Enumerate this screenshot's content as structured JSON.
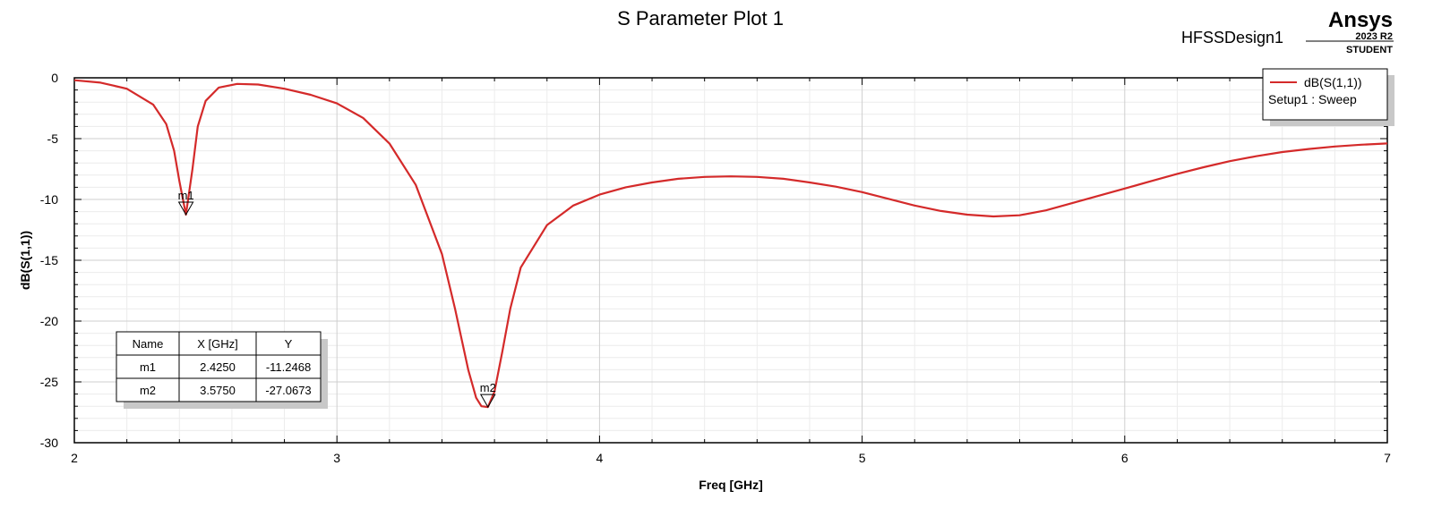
{
  "header": {
    "title": "S Parameter Plot 1",
    "design_name": "HFSSDesign1",
    "brand": "Ansys",
    "brand_version": "2023 R2",
    "brand_edition": "STUDENT"
  },
  "colors": {
    "trace": "#d42a2a",
    "grid_major": "#cfcfcf",
    "grid_minor": "#ececec",
    "shadow": "#c8c8c8"
  },
  "chart_data": {
    "type": "line",
    "title": "S Parameter Plot 1",
    "xlabel": "Freq [GHz]",
    "ylabel": "dB(S(1,1))",
    "xlim": [
      2,
      7
    ],
    "ylim": [
      -30,
      0
    ],
    "x_ticks": [
      "2",
      "3",
      "4",
      "5",
      "6",
      "7"
    ],
    "y_ticks": [
      "0",
      "-5",
      "-10",
      "-15",
      "-20",
      "-25",
      "-30"
    ],
    "grid": true,
    "legend": {
      "placement": "top-right",
      "entries": [
        "dB(S(1,1))"
      ],
      "subtitle": "Setup1 : Sweep"
    },
    "series": [
      {
        "name": "dB(S(1,1))",
        "x": [
          2.0,
          2.1,
          2.2,
          2.3,
          2.35,
          2.38,
          2.4,
          2.425,
          2.45,
          2.47,
          2.5,
          2.55,
          2.62,
          2.7,
          2.8,
          2.9,
          3.0,
          3.1,
          3.2,
          3.3,
          3.4,
          3.45,
          3.5,
          3.53,
          3.55,
          3.575,
          3.6,
          3.63,
          3.66,
          3.7,
          3.8,
          3.9,
          4.0,
          4.1,
          4.2,
          4.3,
          4.4,
          4.5,
          4.6,
          4.7,
          4.8,
          4.9,
          5.0,
          5.1,
          5.2,
          5.3,
          5.4,
          5.5,
          5.6,
          5.7,
          5.8,
          5.9,
          6.0,
          6.1,
          6.2,
          6.3,
          6.4,
          6.5,
          6.6,
          6.7,
          6.8,
          6.9,
          7.0
        ],
        "y": [
          -0.2,
          -0.4,
          -0.9,
          -2.2,
          -3.8,
          -6.0,
          -8.5,
          -11.2468,
          -7.5,
          -4.0,
          -1.9,
          -0.8,
          -0.5,
          -0.55,
          -0.9,
          -1.4,
          -2.1,
          -3.3,
          -5.4,
          -8.8,
          -14.5,
          -19.0,
          -24.0,
          -26.3,
          -27.0,
          -27.0673,
          -25.8,
          -22.5,
          -19.0,
          -15.6,
          -12.1,
          -10.5,
          -9.6,
          -9.0,
          -8.6,
          -8.3,
          -8.15,
          -8.1,
          -8.15,
          -8.3,
          -8.6,
          -8.95,
          -9.4,
          -9.95,
          -10.5,
          -10.95,
          -11.25,
          -11.4,
          -11.3,
          -10.9,
          -10.3,
          -9.7,
          -9.1,
          -8.5,
          -7.9,
          -7.35,
          -6.85,
          -6.45,
          -6.1,
          -5.85,
          -5.65,
          -5.5,
          -5.4
        ]
      }
    ],
    "markers": [
      {
        "name": "m1",
        "x": 2.425,
        "y": -11.2468
      },
      {
        "name": "m2",
        "x": 3.575,
        "y": -27.0673
      }
    ],
    "marker_table": {
      "headers": [
        "Name",
        "X [GHz]",
        "Y"
      ],
      "rows": [
        [
          "m1",
          "2.4250",
          "-11.2468"
        ],
        [
          "m2",
          "3.5750",
          "-27.0673"
        ]
      ]
    }
  }
}
